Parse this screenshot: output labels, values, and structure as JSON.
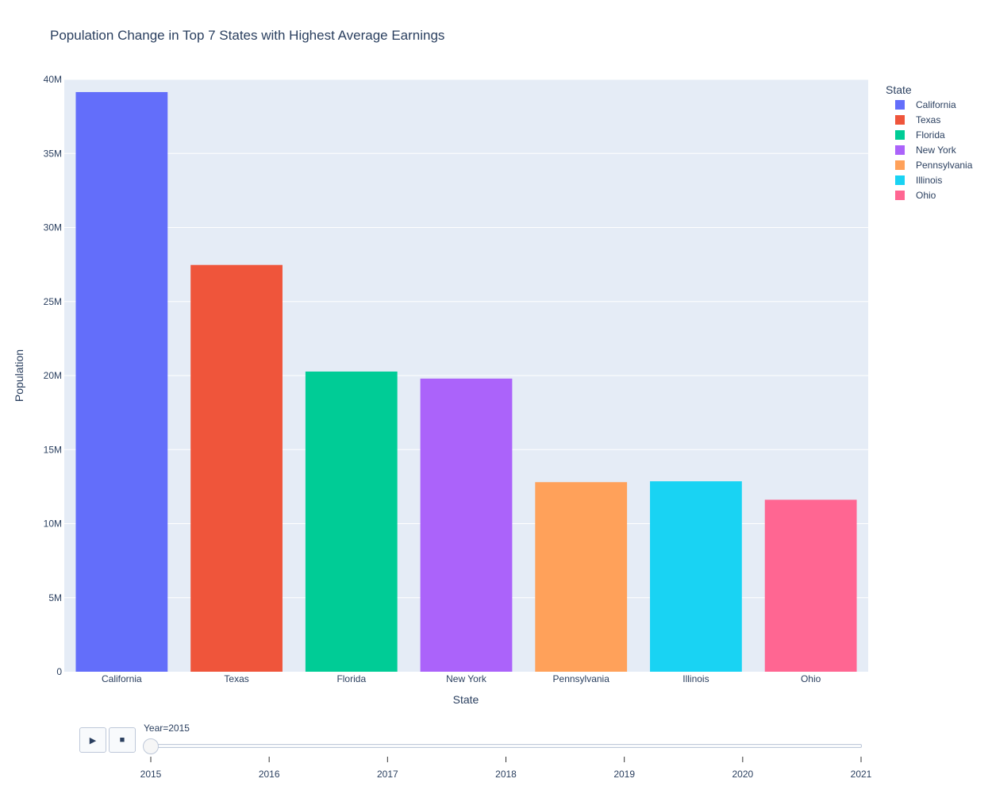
{
  "chart_data": {
    "type": "bar",
    "title": "Population Change in Top 7 States with Highest Average Earnings",
    "xlabel": "State",
    "ylabel": "Population",
    "categories": [
      "California",
      "Texas",
      "Florida",
      "New York",
      "Pennsylvania",
      "Illinois",
      "Ohio"
    ],
    "values": [
      39144818,
      27469114,
      20271272,
      19795791,
      12802503,
      12859995,
      11613423
    ],
    "colors": [
      "#636efa",
      "#EF553B",
      "#00cc96",
      "#ab63fa",
      "#FFA15A",
      "#19d3f3",
      "#FF6692"
    ],
    "ylim": [
      0,
      40000000
    ],
    "yticks": [
      {
        "value": 0,
        "label": "0"
      },
      {
        "value": 5000000,
        "label": "5M"
      },
      {
        "value": 10000000,
        "label": "10M"
      },
      {
        "value": 15000000,
        "label": "15M"
      },
      {
        "value": 20000000,
        "label": "20M"
      },
      {
        "value": 25000000,
        "label": "25M"
      },
      {
        "value": 30000000,
        "label": "30M"
      },
      {
        "value": 35000000,
        "label": "35M"
      },
      {
        "value": 40000000,
        "label": "40M"
      }
    ],
    "grid": true,
    "legend": {
      "title": "State",
      "placement": "right",
      "entries": [
        "California",
        "Texas",
        "Florida",
        "New York",
        "Pennsylvania",
        "Illinois",
        "Ohio"
      ]
    }
  },
  "controls": {
    "play_icon": "play-icon",
    "stop_icon": "stop-icon",
    "play_glyph": "▶",
    "stop_glyph": "■"
  },
  "slider": {
    "label": "Year=2015",
    "current": 2015,
    "steps": [
      "2015",
      "2016",
      "2017",
      "2018",
      "2019",
      "2020",
      "2021"
    ]
  }
}
